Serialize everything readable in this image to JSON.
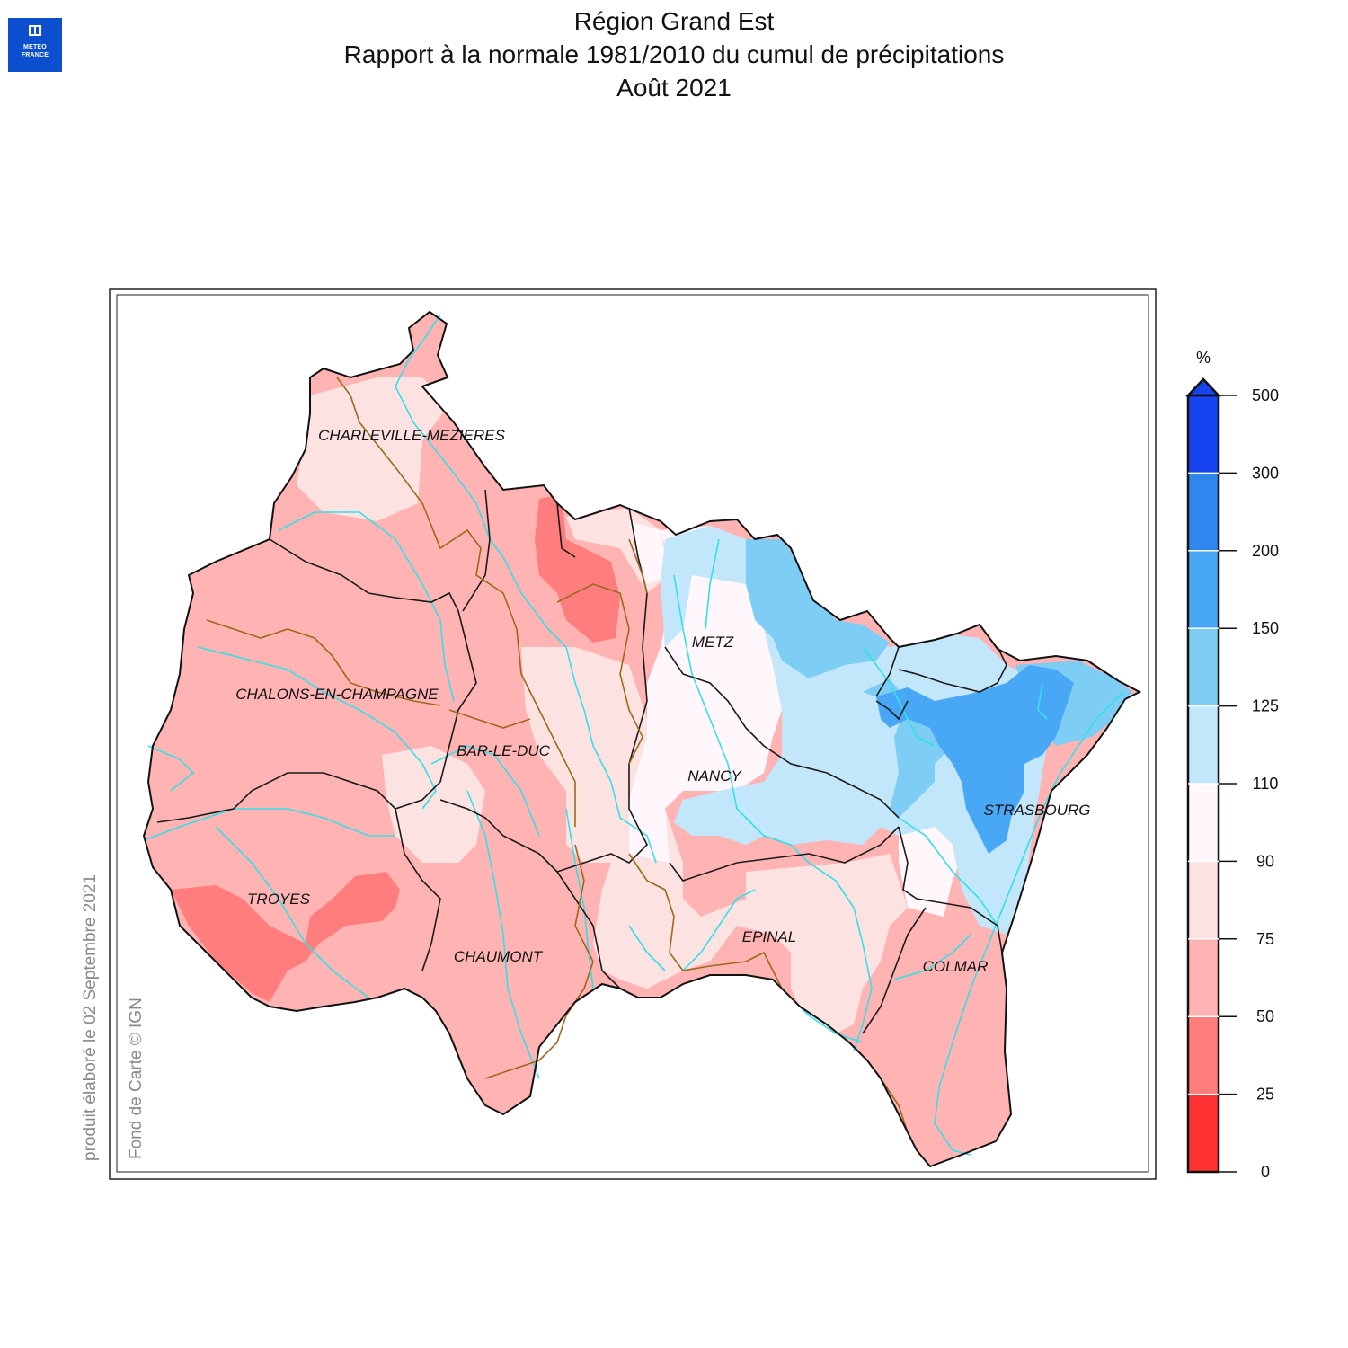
{
  "logo": {
    "line1": "METEO",
    "line2": "FRANCE"
  },
  "title": {
    "line1": "Région Grand Est",
    "line2": "Rapport à la normale 1981/2010 du cumul de précipitations",
    "line3": "Août 2021"
  },
  "credits": {
    "produced": "produit élaboré le 02 Septembre 2021",
    "basemap": "Fond de Carte © IGN"
  },
  "cities": [
    {
      "id": "charleville",
      "name": "CHARLEVILLE-MEZIERES"
    },
    {
      "id": "chalons",
      "name": "CHALONS-EN-CHAMPAGNE"
    },
    {
      "id": "bar-le-duc",
      "name": "BAR-LE-DUC"
    },
    {
      "id": "metz",
      "name": "METZ"
    },
    {
      "id": "nancy",
      "name": "NANCY"
    },
    {
      "id": "strasbourg",
      "name": "STRASBOURG"
    },
    {
      "id": "troyes",
      "name": "TROYES"
    },
    {
      "id": "chaumont",
      "name": "CHAUMONT"
    },
    {
      "id": "epinal",
      "name": "EPINAL"
    },
    {
      "id": "colmar",
      "name": "COLMAR"
    }
  ],
  "legend": {
    "unit": "%",
    "ticks": [
      "0",
      "25",
      "50",
      "75",
      "90",
      "110",
      "125",
      "150",
      "200",
      "300",
      "500"
    ],
    "colors": [
      "#ff3333",
      "#ff7d7d",
      "#ffb3b3",
      "#fde2e2",
      "#fff7fb",
      "#c3e7fa",
      "#7dcdf5",
      "#48a8f5",
      "#2e86ee",
      "#1544f0"
    ]
  }
}
